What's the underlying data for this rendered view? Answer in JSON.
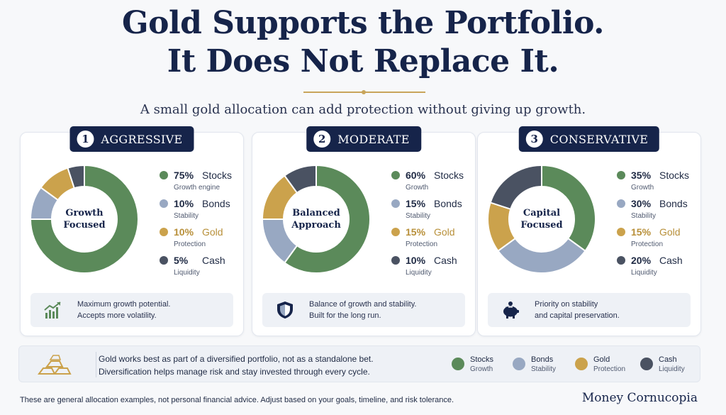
{
  "header": {
    "title_line1": "Gold Supports the Portfolio.",
    "title_line2": "It Does Not Replace It.",
    "subtitle": "A small gold allocation can add protection without giving up growth."
  },
  "colors": {
    "stocks": "#5b8a5a",
    "bonds": "#98a8c2",
    "gold": "#cba24c",
    "cash": "#4a5262",
    "navy": "#16244a"
  },
  "chart_data": [
    {
      "type": "pie",
      "title": "AGGRESSIVE",
      "center_label": "Growth Focused",
      "categories": [
        "Stocks",
        "Bonds",
        "Gold",
        "Cash"
      ],
      "values": [
        75,
        10,
        10,
        5
      ]
    },
    {
      "type": "pie",
      "title": "MODERATE",
      "center_label": "Balanced Approach",
      "categories": [
        "Stocks",
        "Bonds",
        "Gold",
        "Cash"
      ],
      "values": [
        60,
        15,
        15,
        10
      ]
    },
    {
      "type": "pie",
      "title": "CONSERVATIVE",
      "center_label": "Capital Focused",
      "categories": [
        "Stocks",
        "Bonds",
        "Gold",
        "Cash"
      ],
      "values": [
        35,
        30,
        15,
        20
      ]
    }
  ],
  "cards": [
    {
      "number": "1",
      "name": "AGGRESSIVE",
      "center_line1": "Growth",
      "center_line2": "Focused",
      "legend": [
        {
          "pct": "75%",
          "name": "Stocks",
          "desc": "Growth engine",
          "key": "stocks"
        },
        {
          "pct": "10%",
          "name": "Bonds",
          "desc": "Stability",
          "key": "bonds"
        },
        {
          "pct": "10%",
          "name": "Gold",
          "desc": "Protection",
          "key": "gold"
        },
        {
          "pct": "5%",
          "name": "Cash",
          "desc": "Liquidity",
          "key": "cash"
        }
      ],
      "note_icon": "growth-chart-icon",
      "note_line1": "Maximum growth potential.",
      "note_line2": "Accepts more volatility."
    },
    {
      "number": "2",
      "name": "MODERATE",
      "center_line1": "Balanced",
      "center_line2": "Approach",
      "legend": [
        {
          "pct": "60%",
          "name": "Stocks",
          "desc": "Growth",
          "key": "stocks"
        },
        {
          "pct": "15%",
          "name": "Bonds",
          "desc": "Stability",
          "key": "bonds"
        },
        {
          "pct": "15%",
          "name": "Gold",
          "desc": "Protection",
          "key": "gold"
        },
        {
          "pct": "10%",
          "name": "Cash",
          "desc": "Liquidity",
          "key": "cash"
        }
      ],
      "note_icon": "shield-icon",
      "note_line1": "Balance of growth and stability.",
      "note_line2": "Built for the long run."
    },
    {
      "number": "3",
      "name": "CONSERVATIVE",
      "center_line1": "Capital",
      "center_line2": "Focused",
      "legend": [
        {
          "pct": "35%",
          "name": "Stocks",
          "desc": "Growth",
          "key": "stocks"
        },
        {
          "pct": "30%",
          "name": "Bonds",
          "desc": "Stability",
          "key": "bonds"
        },
        {
          "pct": "15%",
          "name": "Gold",
          "desc": "Protection",
          "key": "gold"
        },
        {
          "pct": "20%",
          "name": "Cash",
          "desc": "Liquidity",
          "key": "cash"
        }
      ],
      "note_icon": "piggy-bank-icon",
      "note_line1": "Priority on stability",
      "note_line2": "and capital preservation."
    }
  ],
  "bottom": {
    "icon": "gold-bars-icon",
    "line1": "Gold works best as part of a diversified portfolio, not as a standalone bet.",
    "line2": "Diversification helps manage risk and stay invested through every cycle.",
    "key": [
      {
        "name": "Stocks",
        "desc": "Growth",
        "key": "stocks"
      },
      {
        "name": "Bonds",
        "desc": "Stability",
        "key": "bonds"
      },
      {
        "name": "Gold",
        "desc": "Protection",
        "key": "gold"
      },
      {
        "name": "Cash",
        "desc": "Liquidity",
        "key": "cash"
      }
    ]
  },
  "footer": {
    "disclaimer": "These are general allocation examples, not personal financial advice. Adjust based on your goals, timeline, and risk tolerance.",
    "brand": "Money Cornucopia"
  }
}
